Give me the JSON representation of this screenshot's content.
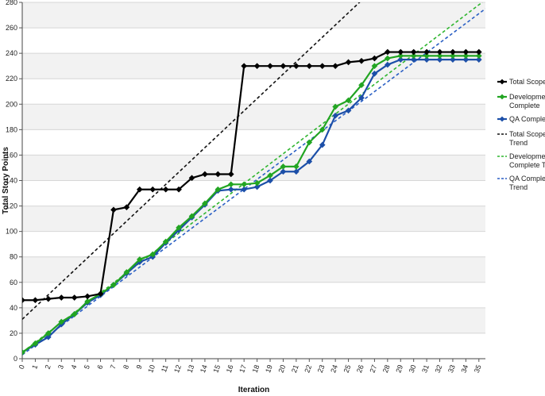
{
  "chart_data": {
    "type": "line",
    "xlabel": "Iteration",
    "ylabel": "Total Story Points",
    "x": [
      0,
      1,
      2,
      3,
      4,
      5,
      6,
      7,
      8,
      9,
      10,
      11,
      12,
      13,
      14,
      15,
      16,
      17,
      18,
      19,
      20,
      21,
      22,
      23,
      24,
      25,
      26,
      27,
      28,
      29,
      30,
      31,
      32,
      33,
      34,
      35
    ],
    "xlim": [
      0,
      35.5
    ],
    "ylim": [
      0,
      280
    ],
    "yticks": [
      0,
      20,
      40,
      60,
      80,
      100,
      120,
      140,
      160,
      180,
      200,
      220,
      240,
      260,
      280
    ],
    "grid": true,
    "legend_position": "right",
    "series": [
      {
        "name": "Total Scope",
        "color": "#000000",
        "style": "solid-marker",
        "values": [
          46,
          46,
          47,
          48,
          48,
          49,
          51,
          117,
          119,
          133,
          133,
          133,
          133,
          142,
          145,
          145,
          145,
          230,
          230,
          230,
          230,
          230,
          230,
          230,
          230,
          233,
          234,
          236,
          241,
          241,
          241,
          241,
          241,
          241,
          241,
          241
        ]
      },
      {
        "name": "Development Complete",
        "color": "#22a522",
        "style": "solid-marker",
        "values": [
          5,
          12,
          20,
          29,
          35,
          45,
          51,
          58,
          68,
          78,
          82,
          92,
          103,
          112,
          122,
          133,
          137,
          137,
          138,
          144,
          151,
          151,
          170,
          180,
          198,
          203,
          215,
          230,
          236,
          238,
          238,
          238,
          238,
          238,
          238,
          238
        ]
      },
      {
        "name": "QA Complete",
        "color": "#1c4fa8",
        "style": "solid-marker",
        "values": [
          5,
          11,
          17,
          27,
          35,
          44,
          50,
          58,
          67,
          76,
          80,
          91,
          101,
          111,
          121,
          132,
          133,
          133,
          135,
          140,
          147,
          147,
          155,
          168,
          191,
          195,
          205,
          224,
          231,
          235,
          235,
          235,
          235,
          235,
          235,
          235
        ]
      },
      {
        "name": "Total Scope Trend",
        "color": "#111111",
        "style": "dashed",
        "start": [
          0,
          31
        ],
        "end": [
          35.5,
          373
        ]
      },
      {
        "name": "Development Complete Trend",
        "color": "#2fb52f",
        "style": "dashed",
        "start": [
          0,
          5
        ],
        "end": [
          35.5,
          282
        ]
      },
      {
        "name": "QA Complete Trend",
        "color": "#2a5fc4",
        "style": "dashed",
        "start": [
          0,
          3
        ],
        "end": [
          35.5,
          275
        ]
      }
    ],
    "legend": [
      {
        "lines": [
          "Total Scope"
        ],
        "series": 0
      },
      {
        "lines": [
          "Development",
          "Complete"
        ],
        "series": 1
      },
      {
        "lines": [
          "QA Complete"
        ],
        "series": 2
      },
      {
        "lines": [
          "Total Scope",
          "Trend"
        ],
        "series": 3
      },
      {
        "lines": [
          "Development",
          "Complete Trend"
        ],
        "series": 4
      },
      {
        "lines": [
          "QA Complete",
          "Trend"
        ],
        "series": 5
      }
    ]
  }
}
